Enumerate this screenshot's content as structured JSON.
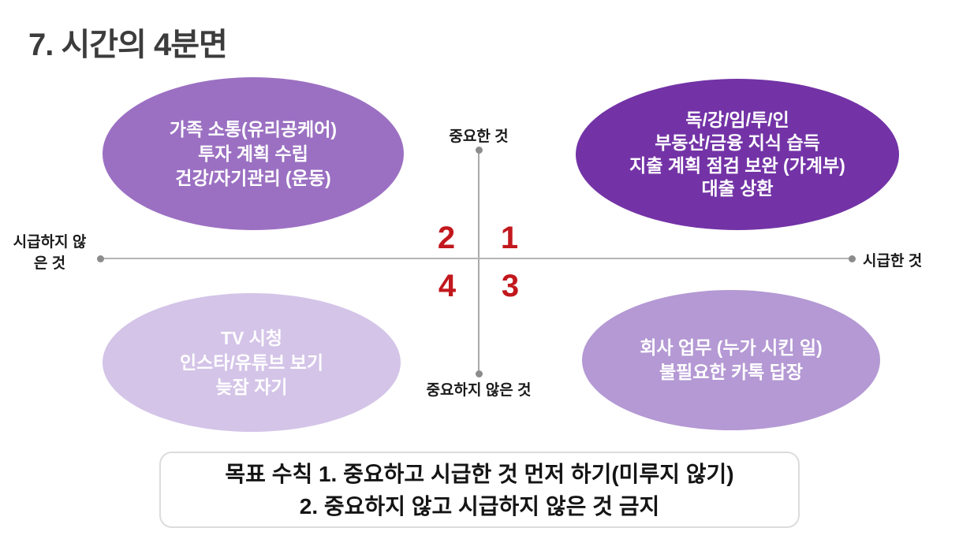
{
  "title": "7. 시간의 4분면",
  "axes": {
    "top_label": "중요한 것",
    "bottom_label": "중요하지 않은 것",
    "left_label_lines": [
      "시급하지",
      "않은 것"
    ],
    "right_label": "시급한 것"
  },
  "quadrant_numbers": {
    "q1": "1",
    "q2": "2",
    "q3": "3",
    "q4": "4"
  },
  "ellipses": {
    "top_left": {
      "quadrant": "2",
      "color": "#9b70c2",
      "lines": [
        "가족 소통(유리공케어)",
        "투자 계획 수립",
        "건강/자기관리 (운동)"
      ]
    },
    "top_right": {
      "quadrant": "1",
      "color": "#7333a6",
      "lines": [
        "독/강/임/투/인",
        "부동산/금융 지식 습득",
        "지출 계획 점검 보완 (가계부)",
        "대출 상환"
      ]
    },
    "bottom_left": {
      "quadrant": "4",
      "color": "#d4c4e8",
      "lines": [
        "TV 시청",
        "인스타/유튜브 보기",
        "늦잠 자기"
      ]
    },
    "bottom_right": {
      "quadrant": "3",
      "color": "#b499d4",
      "lines": [
        "회사 업무 (누가 시킨 일)",
        "불필요한 카톡 답장"
      ]
    }
  },
  "rules_box": {
    "line1": "목표 수칙 1. 중요하고 시급한 것 먼저 하기(미루지 않기)",
    "line2": "2. 중요하지 않고 시급하지 않은 것 금지"
  },
  "colors": {
    "title_text": "#3c3c3c",
    "axis_line": "#a9a9a9",
    "axis_dot": "#8c8c8c",
    "quadrant_number_red": "#c2181d",
    "rules_box_border": "#dcdcdc",
    "ellipse_text": "#ffffff"
  }
}
